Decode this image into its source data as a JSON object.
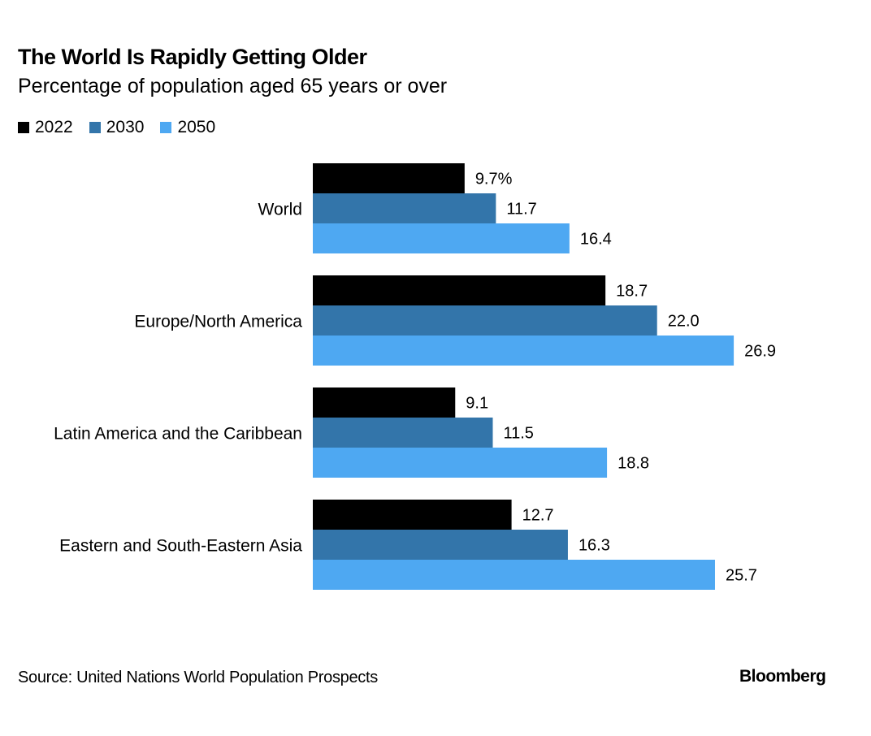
{
  "chart_data": {
    "type": "bar",
    "orientation": "horizontal",
    "title": "The World Is Rapidly Getting Older",
    "subtitle": "Percentage of population aged 65 years or over",
    "xlabel": "",
    "ylabel": "",
    "unit": "%",
    "xlim": [
      0,
      27
    ],
    "grid": false,
    "legend_position": "top-left",
    "categories": [
      "World",
      "Europe/North America",
      "Latin America and the Caribbean",
      "Eastern and South-Eastern Asia"
    ],
    "series": [
      {
        "name": "2022",
        "color": "#000000",
        "values": [
          9.7,
          18.7,
          9.1,
          12.7
        ],
        "labels": [
          "9.7%",
          "18.7",
          "9.1",
          "12.7"
        ]
      },
      {
        "name": "2030",
        "color": "#3375aa",
        "values": [
          11.7,
          22.0,
          11.5,
          16.3
        ],
        "labels": [
          "11.7",
          "22.0",
          "11.5",
          "16.3"
        ]
      },
      {
        "name": "2050",
        "color": "#4ea8f2",
        "values": [
          16.4,
          26.9,
          18.8,
          25.7
        ],
        "labels": [
          "16.4",
          "26.9",
          "18.8",
          "25.7"
        ]
      }
    ],
    "source": "Source: United Nations World Population Prospects",
    "brand": "Bloomberg"
  }
}
